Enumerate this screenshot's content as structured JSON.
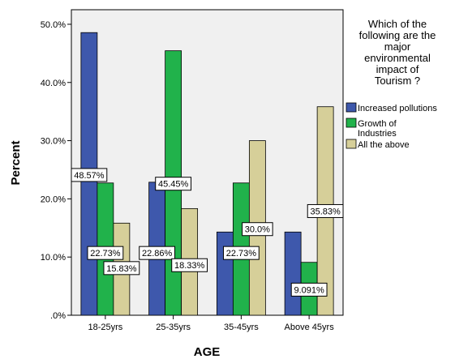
{
  "chart_data": {
    "type": "bar",
    "title": "",
    "xlabel": "AGE",
    "ylabel": "Percent",
    "ylim": [
      0,
      52.5
    ],
    "yticks": [
      0,
      10,
      20,
      30,
      40,
      50
    ],
    "ytick_labels": [
      ".0%",
      "10.0%",
      "20.0%",
      "30.0%",
      "40.0%",
      "50.0%"
    ],
    "categories": [
      "18-25yrs",
      "25-35yrs",
      "35-45yrs",
      "Above 45yrs"
    ],
    "legend": {
      "title": "Which of the following are the major environmental impact of Tourism ?",
      "title_lines": [
        "Which of the",
        "following are the",
        "major",
        "environmental",
        "impact of",
        "Tourism ?"
      ],
      "position": "right"
    },
    "series": [
      {
        "name": "Increased pollutions",
        "name_lines": [
          "Increased pollutions"
        ],
        "color": "#3e58ac",
        "values": [
          48.57,
          22.86,
          14.3,
          14.3
        ],
        "labels": [
          "48.57%",
          "22.86%",
          "",
          ""
        ]
      },
      {
        "name": "Growth of Industries",
        "name_lines": [
          "Growth of",
          "Industries"
        ],
        "color": "#21b24b",
        "values": [
          22.73,
          45.45,
          22.73,
          9.091
        ],
        "labels": [
          "22.73%",
          "45.45%",
          "22.73%",
          "9.091%"
        ]
      },
      {
        "name": "All the above",
        "name_lines": [
          "All the above"
        ],
        "color": "#d6cf99",
        "values": [
          15.83,
          18.33,
          30.0,
          35.83
        ],
        "labels": [
          "15.83%",
          "18.33%",
          "30.0%",
          "35.83%"
        ]
      }
    ],
    "grid": false
  }
}
